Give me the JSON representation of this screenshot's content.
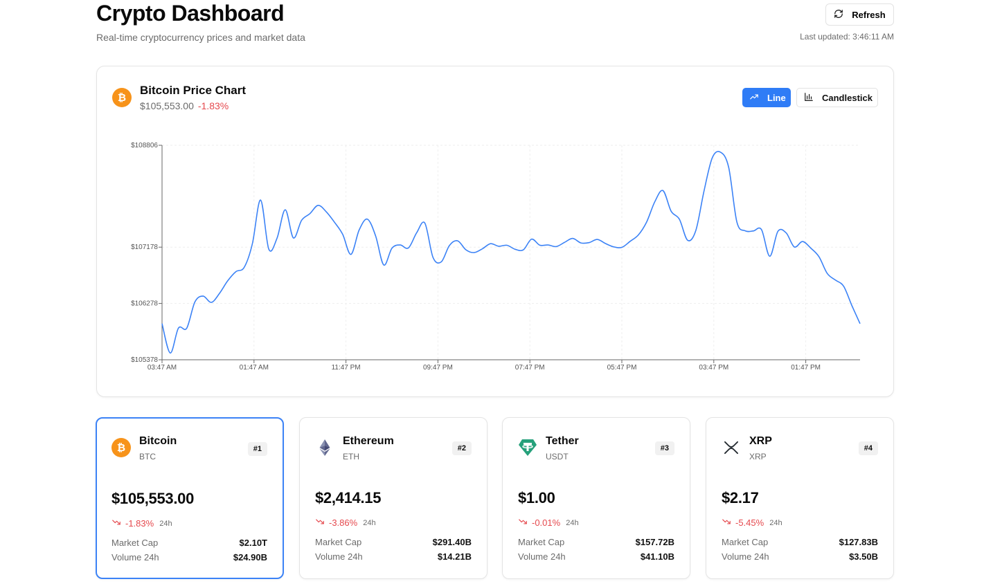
{
  "header": {
    "title": "Crypto Dashboard",
    "subtitle": "Real-time cryptocurrency prices and market data",
    "refresh_label": "Refresh",
    "last_updated": "Last updated: 3:46:11 AM"
  },
  "chart_card": {
    "title": "Bitcoin Price Chart",
    "price": "$105,553.00",
    "change": "-1.83%",
    "icon": "bitcoin-icon",
    "toggles": [
      {
        "label": "Line",
        "icon": "trend-up-icon",
        "active": true
      },
      {
        "label": "Candlestick",
        "icon": "bar-chart-icon",
        "active": false
      }
    ]
  },
  "chart_data": {
    "type": "line",
    "title": "",
    "xlabel": "",
    "ylabel": "",
    "x_ticks": [
      "03:47 AM",
      "01:47 AM",
      "11:47 PM",
      "09:47 PM",
      "07:47 PM",
      "05:47 PM",
      "03:47 PM",
      "01:47 PM"
    ],
    "y_ticks": [
      "$108806",
      "$107178",
      "$106278",
      "$105378"
    ],
    "ylim": [
      105378,
      108806
    ],
    "grid": true,
    "color": "#3b82f6",
    "series": [
      {
        "name": "",
        "values": [
          105956,
          105486,
          105885,
          105881,
          106301,
          106396,
          106295,
          106440,
          106641,
          106787,
          106854,
          107230,
          107931,
          107145,
          107320,
          107775,
          107325,
          107608,
          107713,
          107846,
          107742,
          107576,
          107382,
          107062,
          107451,
          107626,
          107362,
          106893,
          107161,
          107213,
          107165,
          107406,
          107563,
          107013,
          106943,
          107205,
          107279,
          107136,
          107091,
          107151,
          107233,
          107193,
          107208,
          107144,
          107135,
          107306,
          107209,
          107213,
          107187,
          107253,
          107318,
          107246,
          107250,
          107301,
          107236,
          107183,
          107175,
          107271,
          107373,
          107577,
          107901,
          108082,
          107752,
          107624,
          107288,
          107444,
          108076,
          108604,
          108697,
          108453,
          107581,
          107439,
          107437,
          107458,
          107032,
          107431,
          107406,
          107181,
          107268,
          107163,
          107025,
          106758,
          106652,
          106553,
          106246,
          105955
        ]
      }
    ]
  },
  "coins": [
    {
      "name": "Bitcoin",
      "symbol": "BTC",
      "rank": "#1",
      "price": "$105,553.00",
      "change": "-1.83%",
      "period": "24h",
      "market_cap_label": "Market Cap",
      "market_cap": "$2.10T",
      "volume_label": "Volume 24h",
      "volume": "$24.90B",
      "icon": "bitcoin-icon",
      "selected": true
    },
    {
      "name": "Ethereum",
      "symbol": "ETH",
      "rank": "#2",
      "price": "$2,414.15",
      "change": "-3.86%",
      "period": "24h",
      "market_cap_label": "Market Cap",
      "market_cap": "$291.40B",
      "volume_label": "Volume 24h",
      "volume": "$14.21B",
      "icon": "ethereum-icon",
      "selected": false
    },
    {
      "name": "Tether",
      "symbol": "USDT",
      "rank": "#3",
      "price": "$1.00",
      "change": "-0.01%",
      "period": "24h",
      "market_cap_label": "Market Cap",
      "market_cap": "$157.72B",
      "volume_label": "Volume 24h",
      "volume": "$41.10B",
      "icon": "tether-icon",
      "selected": false
    },
    {
      "name": "XRP",
      "symbol": "XRP",
      "rank": "#4",
      "price": "$2.17",
      "change": "-5.45%",
      "period": "24h",
      "market_cap_label": "Market Cap",
      "market_cap": "$127.83B",
      "volume_label": "Volume 24h",
      "volume": "$3.50B",
      "icon": "xrp-icon",
      "selected": false
    }
  ],
  "colors": {
    "accent": "#2f7cf6",
    "negative": "#e5484d",
    "bitcoin": "#f7931a",
    "tether": "#26a17b",
    "muted": "#6b6b6b"
  }
}
